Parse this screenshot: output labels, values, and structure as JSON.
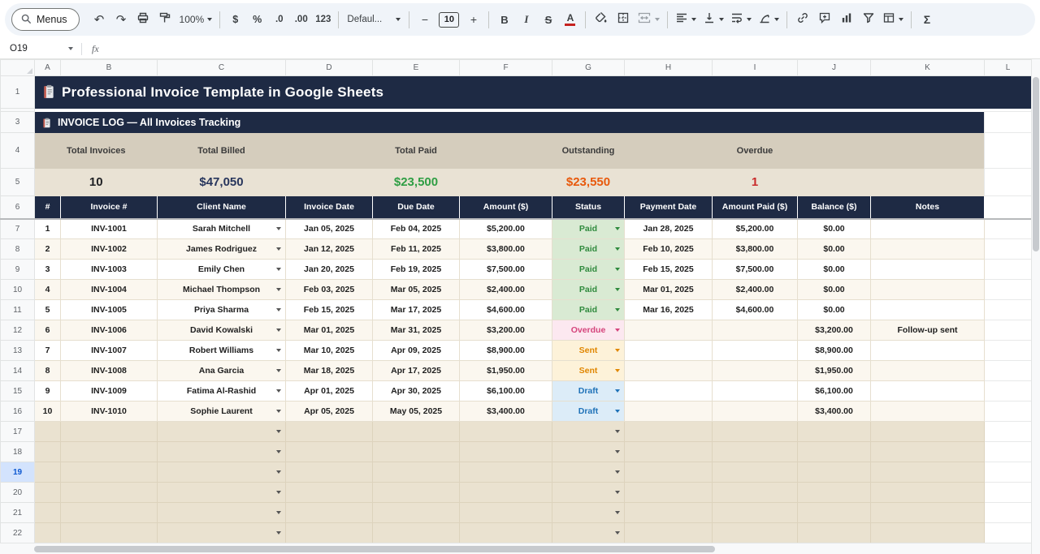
{
  "toolbar": {
    "menus": "Menus",
    "zoom": "100%",
    "currency": "$",
    "percent": "%",
    "decimal_decrease": ".0",
    "decimal_increase": ".00",
    "number_format": "123",
    "font_family": "Defaul...",
    "minus": "−",
    "font_size": "10",
    "plus": "+",
    "bold": "B",
    "italic": "I",
    "strikethrough": "S",
    "text_color": "A",
    "functions": "Σ"
  },
  "formula_bar": {
    "name_box": "O19",
    "fx": "fx"
  },
  "grid": {
    "columns": [
      "A",
      "B",
      "C",
      "D",
      "E",
      "F",
      "G",
      "H",
      "I",
      "J",
      "K",
      "L"
    ],
    "visible_row_numbers": [
      1,
      3,
      4,
      5,
      6,
      7,
      8,
      9,
      10,
      11,
      12,
      13,
      14,
      15,
      16,
      17,
      18,
      19,
      20,
      21,
      22
    ],
    "hidden_row": 2,
    "selected_row": 19
  },
  "sheet": {
    "main_title": "Professional Invoice Template in Google Sheets",
    "log_title": "INVOICE LOG — All Invoices Tracking",
    "summary": {
      "labels": [
        "Total Invoices",
        "Total Billed",
        "Total Paid",
        "Outstanding",
        "Overdue"
      ],
      "values": [
        "10",
        "$47,050",
        "$23,500",
        "$23,550",
        "1"
      ]
    },
    "table": {
      "headers": [
        "#",
        "Invoice #",
        "Client Name",
        "Invoice Date",
        "Due Date",
        "Amount ($)",
        "Status",
        "Payment Date",
        "Amount Paid ($)",
        "Balance ($)",
        "Notes"
      ],
      "rows": [
        {
          "n": "1",
          "invoice": "INV-1001",
          "client": "Sarah Mitchell",
          "invoice_date": "Jan 05, 2025",
          "due_date": "Feb 04, 2025",
          "amount": "$5,200.00",
          "status": "Paid",
          "payment_date": "Jan 28, 2025",
          "amount_paid": "$5,200.00",
          "balance": "$0.00",
          "notes": ""
        },
        {
          "n": "2",
          "invoice": "INV-1002",
          "client": "James Rodriguez",
          "invoice_date": "Jan 12, 2025",
          "due_date": "Feb 11, 2025",
          "amount": "$3,800.00",
          "status": "Paid",
          "payment_date": "Feb 10, 2025",
          "amount_paid": "$3,800.00",
          "balance": "$0.00",
          "notes": ""
        },
        {
          "n": "3",
          "invoice": "INV-1003",
          "client": "Emily Chen",
          "invoice_date": "Jan 20, 2025",
          "due_date": "Feb 19, 2025",
          "amount": "$7,500.00",
          "status": "Paid",
          "payment_date": "Feb 15, 2025",
          "amount_paid": "$7,500.00",
          "balance": "$0.00",
          "notes": ""
        },
        {
          "n": "4",
          "invoice": "INV-1004",
          "client": "Michael Thompson",
          "invoice_date": "Feb 03, 2025",
          "due_date": "Mar 05, 2025",
          "amount": "$2,400.00",
          "status": "Paid",
          "payment_date": "Mar 01, 2025",
          "amount_paid": "$2,400.00",
          "balance": "$0.00",
          "notes": ""
        },
        {
          "n": "5",
          "invoice": "INV-1005",
          "client": "Priya Sharma",
          "invoice_date": "Feb 15, 2025",
          "due_date": "Mar 17, 2025",
          "amount": "$4,600.00",
          "status": "Paid",
          "payment_date": "Mar 16, 2025",
          "amount_paid": "$4,600.00",
          "balance": "$0.00",
          "notes": ""
        },
        {
          "n": "6",
          "invoice": "INV-1006",
          "client": "David Kowalski",
          "invoice_date": "Mar 01, 2025",
          "due_date": "Mar 31, 2025",
          "amount": "$3,200.00",
          "status": "Overdue",
          "payment_date": "",
          "amount_paid": "",
          "balance": "$3,200.00",
          "notes": "Follow-up sent"
        },
        {
          "n": "7",
          "invoice": "INV-1007",
          "client": "Robert Williams",
          "invoice_date": "Mar 10, 2025",
          "due_date": "Apr 09, 2025",
          "amount": "$8,900.00",
          "status": "Sent",
          "payment_date": "",
          "amount_paid": "",
          "balance": "$8,900.00",
          "notes": ""
        },
        {
          "n": "8",
          "invoice": "INV-1008",
          "client": "Ana Garcia",
          "invoice_date": "Mar 18, 2025",
          "due_date": "Apr 17, 2025",
          "amount": "$1,950.00",
          "status": "Sent",
          "payment_date": "",
          "amount_paid": "",
          "balance": "$1,950.00",
          "notes": ""
        },
        {
          "n": "9",
          "invoice": "INV-1009",
          "client": "Fatima Al-Rashid",
          "invoice_date": "Apr 01, 2025",
          "due_date": "Apr 30, 2025",
          "amount": "$6,100.00",
          "status": "Draft",
          "payment_date": "",
          "amount_paid": "",
          "balance": "$6,100.00",
          "notes": ""
        },
        {
          "n": "10",
          "invoice": "INV-1010",
          "client": "Sophie Laurent",
          "invoice_date": "Apr 05, 2025",
          "due_date": "May 05, 2025",
          "amount": "$3,400.00",
          "status": "Draft",
          "payment_date": "",
          "amount_paid": "",
          "balance": "$3,400.00",
          "notes": ""
        }
      ]
    },
    "empty_rows": {
      "count": 6,
      "dropdown_columns": [
        "C",
        "G"
      ]
    }
  },
  "colors": {
    "banner_bg": "#1e2a44",
    "summary_label_bg": "#d5cdbd",
    "summary_value_bg": "#e9e2d4",
    "empty_band_bg": "#eae2d0",
    "value_colors": [
      "#202124",
      "#27355c",
      "#2f9e44",
      "#e8590c",
      "#c92a2a"
    ],
    "status": {
      "Paid": {
        "bg": "#d9ead3",
        "fg": "#2f8a3d"
      },
      "Overdue": {
        "bg": "#fce8f0",
        "fg": "#d5447c"
      },
      "Sent": {
        "bg": "#fdf2d9",
        "fg": "#e08600"
      },
      "Draft": {
        "bg": "#dcecf8",
        "fg": "#1f72b8"
      }
    }
  }
}
